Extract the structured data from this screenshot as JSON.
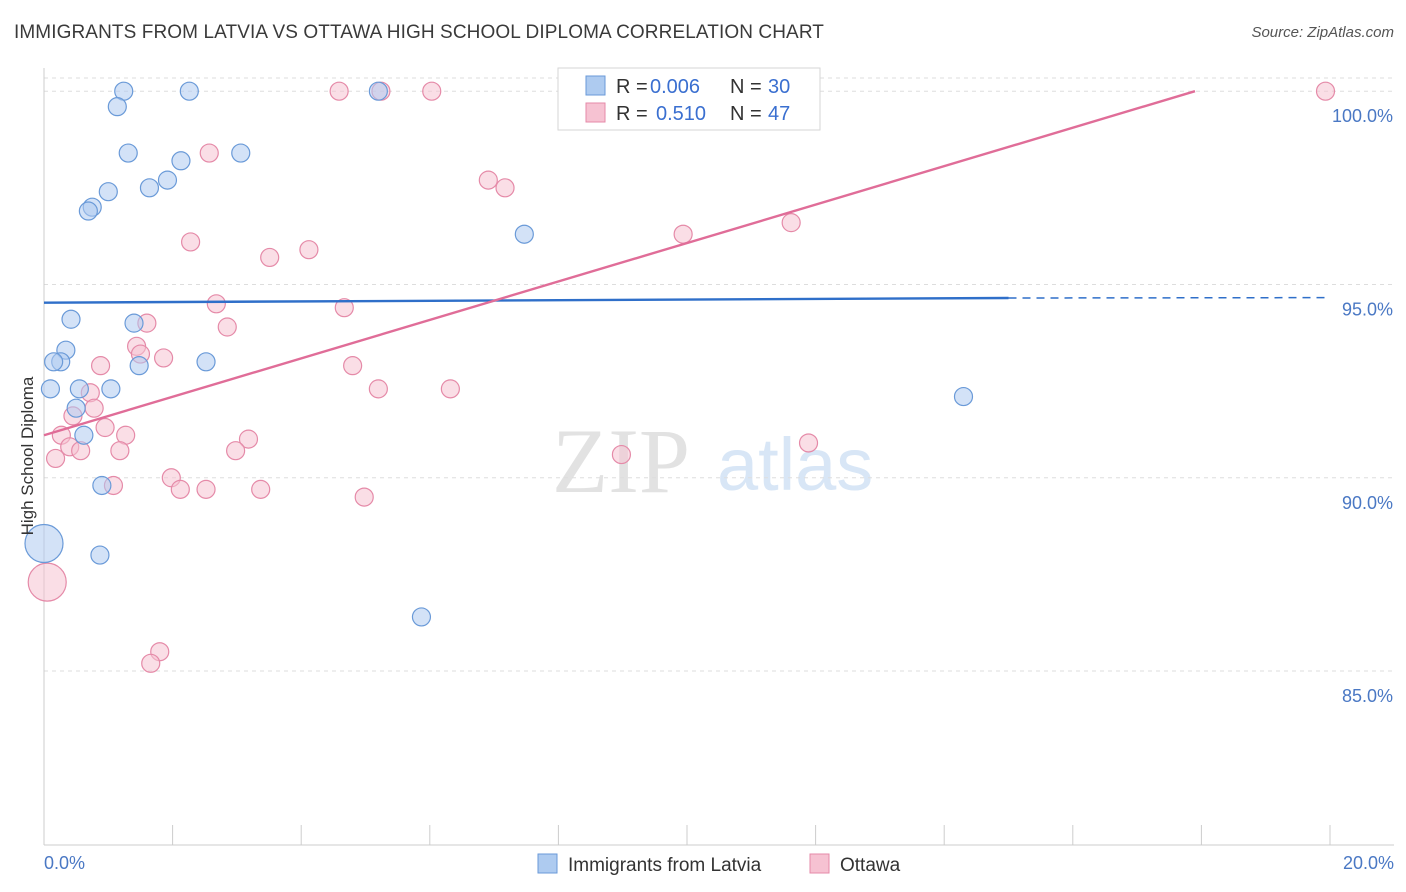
{
  "header": {
    "title": "IMMIGRANTS FROM LATVIA VS OTTAWA HIGH SCHOOL DIPLOMA CORRELATION CHART",
    "source": "Source: ZipAtlas.com"
  },
  "watermark": {
    "zip": "ZIP",
    "atlas": "atlas"
  },
  "colors": {
    "blue_fill": "#aecbf0",
    "blue_stroke": "#6a9ad8",
    "blue_line": "#2f6fc9",
    "pink_fill": "#f6c2d2",
    "pink_stroke": "#e58aa8",
    "pink_line": "#e06d98",
    "tick_text": "#4a78c4",
    "grid": "#dddddd"
  },
  "legend": {
    "rows": [
      {
        "r_label": "R =",
        "r_value": "0.006",
        "n_label": "N =",
        "n_value": "30"
      },
      {
        "r_label": "R =",
        "r_value": "0.510",
        "n_label": "N =",
        "n_value": "47"
      }
    ]
  },
  "chart_data": {
    "type": "scatter",
    "title": "IMMIGRANTS FROM LATVIA VS OTTAWA HIGH SCHOOL DIPLOMA CORRELATION CHART",
    "xlabel": "",
    "ylabel": "High School Diploma",
    "xlim": [
      0,
      20
    ],
    "ylim": [
      80.5,
      100.6
    ],
    "x_tick_labels": [
      "0.0%",
      "20.0%"
    ],
    "y_ticks": [
      85,
      90,
      95,
      100
    ],
    "y_tick_labels": [
      "85.0%",
      "90.0%",
      "95.0%",
      "100.0%"
    ],
    "grid": true,
    "legend_position": "top-center",
    "series": [
      {
        "name": "Immigrants from Latvia",
        "r": 0.006,
        "n": 30,
        "trend": {
          "x": [
            0,
            15
          ],
          "y": [
            94.53,
            94.65
          ],
          "dashed_to_x": 20,
          "dashed_end_y": 94.66
        },
        "points": [
          {
            "x": 1.24,
            "y": 100.0
          },
          {
            "x": 2.26,
            "y": 100.0
          },
          {
            "x": 5.2,
            "y": 100.0
          },
          {
            "x": 1.14,
            "y": 99.6
          },
          {
            "x": 1.31,
            "y": 98.4
          },
          {
            "x": 2.13,
            "y": 98.2
          },
          {
            "x": 3.06,
            "y": 98.4
          },
          {
            "x": 1.64,
            "y": 97.5
          },
          {
            "x": 1.92,
            "y": 97.7
          },
          {
            "x": 1.0,
            "y": 97.4
          },
          {
            "x": 0.75,
            "y": 97.0
          },
          {
            "x": 0.69,
            "y": 96.9
          },
          {
            "x": 7.47,
            "y": 96.3
          },
          {
            "x": 0.42,
            "y": 94.1
          },
          {
            "x": 1.4,
            "y": 94.0
          },
          {
            "x": 0.34,
            "y": 93.3
          },
          {
            "x": 0.26,
            "y": 93.0
          },
          {
            "x": 0.15,
            "y": 93.0
          },
          {
            "x": 1.48,
            "y": 92.9
          },
          {
            "x": 2.52,
            "y": 93.0
          },
          {
            "x": 0.1,
            "y": 92.3
          },
          {
            "x": 1.04,
            "y": 92.3
          },
          {
            "x": 0.55,
            "y": 92.3
          },
          {
            "x": 0.5,
            "y": 91.8
          },
          {
            "x": 0.62,
            "y": 91.1
          },
          {
            "x": 0.9,
            "y": 89.8
          },
          {
            "x": 0.87,
            "y": 88.0
          },
          {
            "x": 0.0,
            "y": 88.3,
            "large": true
          },
          {
            "x": 5.87,
            "y": 86.4
          },
          {
            "x": 14.3,
            "y": 92.1
          }
        ]
      },
      {
        "name": "Ottawa",
        "r": 0.51,
        "n": 47,
        "trend": {
          "x": [
            0,
            17.9
          ],
          "y": [
            91.1,
            100.0
          ]
        },
        "points": [
          {
            "x": 4.59,
            "y": 100.0
          },
          {
            "x": 5.24,
            "y": 100.0
          },
          {
            "x": 6.03,
            "y": 100.0
          },
          {
            "x": 8.2,
            "y": 100.0
          },
          {
            "x": 19.93,
            "y": 100.0
          },
          {
            "x": 2.57,
            "y": 98.4
          },
          {
            "x": 6.91,
            "y": 97.7
          },
          {
            "x": 7.17,
            "y": 97.5
          },
          {
            "x": 11.62,
            "y": 96.6
          },
          {
            "x": 9.94,
            "y": 96.3
          },
          {
            "x": 2.28,
            "y": 96.1
          },
          {
            "x": 3.51,
            "y": 95.7
          },
          {
            "x": 4.12,
            "y": 95.9
          },
          {
            "x": 2.68,
            "y": 94.5
          },
          {
            "x": 4.67,
            "y": 94.4
          },
          {
            "x": 1.6,
            "y": 94.0
          },
          {
            "x": 2.85,
            "y": 93.9
          },
          {
            "x": 1.44,
            "y": 93.4
          },
          {
            "x": 1.5,
            "y": 93.2
          },
          {
            "x": 1.86,
            "y": 93.1
          },
          {
            "x": 0.88,
            "y": 92.9
          },
          {
            "x": 4.8,
            "y": 92.9
          },
          {
            "x": 5.2,
            "y": 92.3
          },
          {
            "x": 6.32,
            "y": 92.3
          },
          {
            "x": 0.72,
            "y": 92.2
          },
          {
            "x": 0.78,
            "y": 91.8
          },
          {
            "x": 0.45,
            "y": 91.6
          },
          {
            "x": 0.95,
            "y": 91.3
          },
          {
            "x": 1.27,
            "y": 91.1
          },
          {
            "x": 0.27,
            "y": 91.1
          },
          {
            "x": 3.18,
            "y": 91.0
          },
          {
            "x": 0.4,
            "y": 90.8
          },
          {
            "x": 0.57,
            "y": 90.7
          },
          {
            "x": 1.18,
            "y": 90.7
          },
          {
            "x": 2.98,
            "y": 90.7
          },
          {
            "x": 8.98,
            "y": 90.6
          },
          {
            "x": 11.89,
            "y": 90.9
          },
          {
            "x": 0.18,
            "y": 90.5
          },
          {
            "x": 1.98,
            "y": 90.0
          },
          {
            "x": 1.08,
            "y": 89.8
          },
          {
            "x": 2.12,
            "y": 89.7
          },
          {
            "x": 2.52,
            "y": 89.7
          },
          {
            "x": 3.37,
            "y": 89.7
          },
          {
            "x": 4.98,
            "y": 89.5
          },
          {
            "x": 0.05,
            "y": 87.3,
            "large": true
          },
          {
            "x": 1.8,
            "y": 85.5
          },
          {
            "x": 1.66,
            "y": 85.2
          }
        ]
      }
    ]
  },
  "bottom_legend": {
    "items": [
      "Immigrants from Latvia",
      "Ottawa"
    ]
  }
}
